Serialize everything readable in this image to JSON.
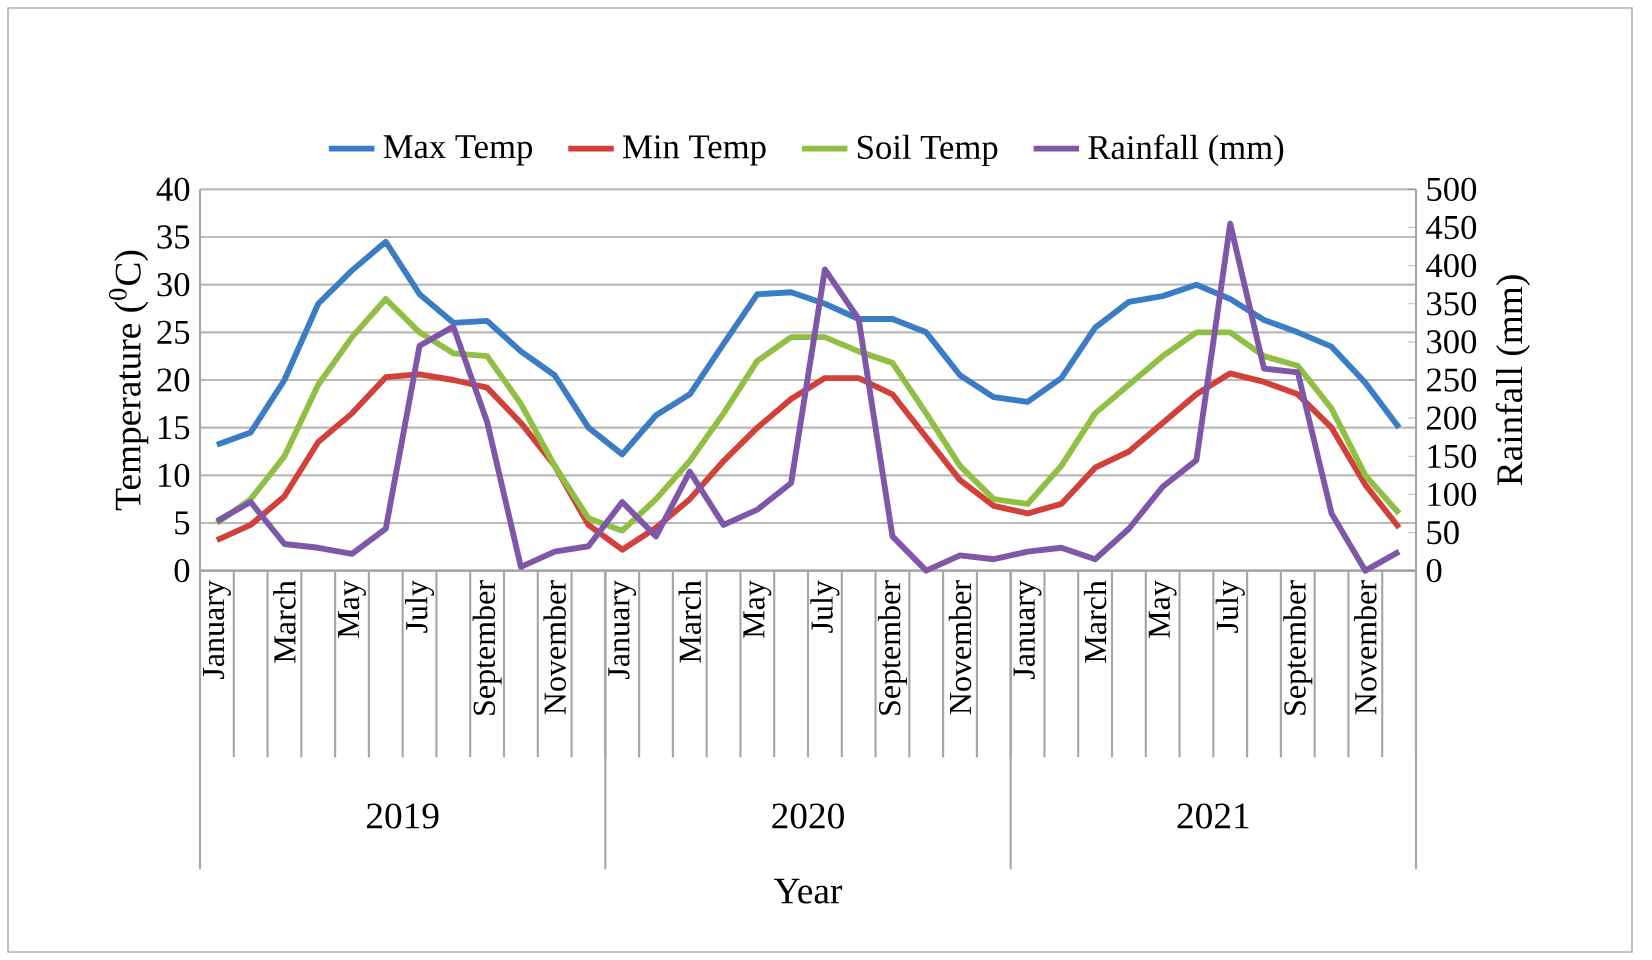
{
  "chart_data": {
    "type": "line",
    "categories": [
      "January",
      null,
      "March",
      null,
      "May",
      null,
      "July",
      null,
      "September",
      null,
      "November",
      null,
      "January",
      null,
      "March",
      null,
      "May",
      null,
      "July",
      null,
      "September",
      null,
      "November",
      null,
      "January",
      null,
      "March",
      null,
      "May",
      null,
      "July",
      null,
      "September",
      null,
      "November",
      null
    ],
    "series": [
      {
        "name": "Max Temp",
        "color": "#3a7dc4",
        "values": [
          13.2,
          14.5,
          20,
          28,
          31.5,
          34.5,
          29,
          26,
          26.2,
          23,
          20.5,
          15,
          12.2,
          16.3,
          18.5,
          23.8,
          29,
          29.2,
          28,
          26.4,
          26.4,
          25,
          20.5,
          18.2,
          17.7,
          20.2,
          25.5,
          28.2,
          28.8,
          30,
          28.5,
          26.3,
          25,
          23.5,
          19.7,
          15
        ]
      },
      {
        "name": "Min Temp",
        "color": "#d2403a",
        "values": [
          3.2,
          4.8,
          7.8,
          13.5,
          16.5,
          20.3,
          20.6,
          20,
          19.2,
          15.5,
          11,
          4.8,
          2.2,
          4.5,
          7.5,
          11.5,
          15,
          18,
          20.2,
          20.2,
          18.5,
          14,
          9.5,
          6.8,
          6,
          7,
          10.8,
          12.5,
          15.5,
          18.5,
          20.7,
          19.8,
          18.5,
          15,
          9,
          4.5
        ]
      },
      {
        "name": "Soil Temp",
        "color": "#8fc043",
        "values": [
          5,
          7.5,
          12,
          19.5,
          24.5,
          28.5,
          25,
          22.8,
          22.5,
          17.5,
          11,
          5.5,
          4.2,
          7.5,
          11.5,
          16.5,
          22,
          24.5,
          24.5,
          23,
          21.8,
          16.5,
          11,
          7.5,
          7,
          11,
          16.5,
          19.5,
          22.5,
          25,
          25,
          22.5,
          21.5,
          17,
          10,
          6
        ]
      },
      {
        "name": "Rainfall (mm)",
        "color": "#7f57a8",
        "axis": "y2",
        "values": [
          65,
          90,
          35,
          30,
          22,
          55,
          295,
          320,
          195,
          5,
          25,
          32,
          90,
          45,
          130,
          60,
          80,
          115,
          395,
          330,
          45,
          0,
          20,
          15,
          25,
          30,
          15,
          55,
          110,
          145,
          455,
          265,
          260,
          75,
          0,
          25
        ]
      }
    ],
    "xlabel": "Year",
    "ylabel": "Temperature ($^{0}$C)",
    "y2label": "Rainfall (mm)",
    "ylim": [
      0,
      40
    ],
    "yticks": [
      0,
      5,
      10,
      15,
      20,
      25,
      30,
      35,
      40
    ],
    "y2lim": [
      0,
      500
    ],
    "y2ticks": [
      0,
      50,
      100,
      150,
      200,
      250,
      300,
      350,
      400,
      450,
      500
    ],
    "annotations": [
      "2019",
      "2020",
      "2021"
    ],
    "grid": "y",
    "legend": "top",
    "marker": "none",
    "line_style": "solid"
  }
}
